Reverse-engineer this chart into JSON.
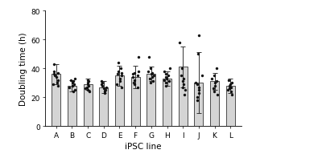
{
  "categories": [
    "A",
    "B",
    "C",
    "D",
    "E",
    "F",
    "G",
    "H",
    "I",
    "J",
    "K",
    "L"
  ],
  "bar_means": [
    36,
    28,
    29,
    27,
    35,
    34,
    36,
    33,
    41,
    30,
    31,
    28
  ],
  "bar_errors": [
    7,
    4,
    4,
    4,
    7,
    8,
    5,
    5,
    14,
    21,
    6,
    5
  ],
  "dot_data": [
    [
      28,
      29,
      30,
      32,
      34,
      35,
      36,
      37,
      38,
      43
    ],
    [
      24,
      25,
      27,
      28,
      29,
      30,
      31,
      32,
      33
    ],
    [
      24,
      25,
      26,
      27,
      28,
      29,
      30,
      31,
      32
    ],
    [
      23,
      24,
      25,
      26,
      27,
      28,
      29,
      30,
      31
    ],
    [
      27,
      29,
      31,
      33,
      35,
      36,
      37,
      38,
      40,
      44
    ],
    [
      27,
      29,
      30,
      32,
      34,
      35,
      36,
      37,
      38,
      48
    ],
    [
      30,
      31,
      33,
      34,
      35,
      36,
      37,
      38,
      40,
      48
    ],
    [
      28,
      30,
      31,
      32,
      33,
      34,
      35,
      36,
      38,
      40
    ],
    [
      22,
      25,
      27,
      29,
      31,
      33,
      35,
      40,
      58
    ],
    [
      18,
      20,
      23,
      25,
      27,
      29,
      30,
      35,
      50,
      63
    ],
    [
      22,
      24,
      26,
      28,
      30,
      31,
      33,
      35,
      40
    ],
    [
      22,
      24,
      25,
      26,
      27,
      28,
      29,
      30,
      32
    ]
  ],
  "bar_color": "#d4d4d4",
  "bar_edge_color": "#333333",
  "dot_color": "#111111",
  "error_color": "#333333",
  "xlabel": "iPSC line",
  "ylabel": "Doubling time (h)",
  "ylim": [
    0,
    80
  ],
  "yticks": [
    0,
    20,
    40,
    60,
    80
  ],
  "background_color": "#ffffff",
  "bar_width": 0.55,
  "xlabel_fontsize": 7.5,
  "ylabel_fontsize": 7.5,
  "tick_fontsize": 6.5
}
